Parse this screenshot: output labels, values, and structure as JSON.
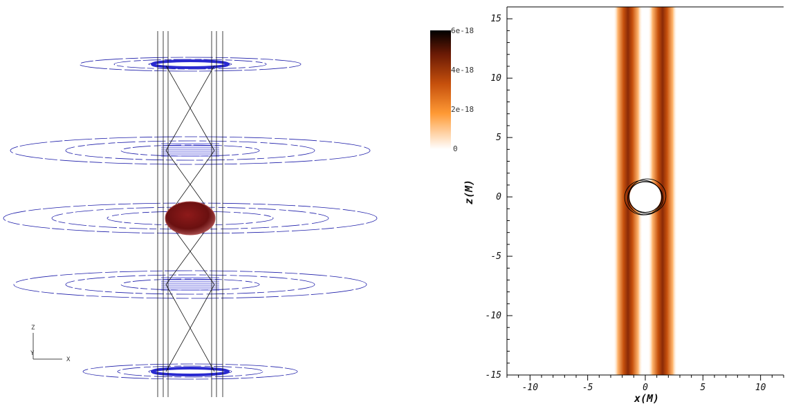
{
  "left_panel": {
    "triad": {
      "z_label": "Z",
      "y_label": "Y",
      "x_label": "X"
    },
    "colors": {
      "field_line": "#1a1aa8",
      "dark_line": "#111111",
      "sphere": "#7a1414",
      "ring": "#2a2ad0"
    }
  },
  "colorbar": {
    "labels": [
      "6e-18",
      "4e-18",
      "2e-18",
      "0"
    ],
    "range": [
      0,
      6e-18
    ],
    "colormap": [
      "#ffffff",
      "#ff9a35",
      "#c6500c",
      "#6b1a05",
      "#000000"
    ]
  },
  "chart_data": {
    "type": "heatmap",
    "xlabel": "x(M)",
    "ylabel": "z(M)",
    "xlim": [
      -12,
      12
    ],
    "ylim": [
      -15,
      16
    ],
    "x_ticks": [
      "-10",
      "-5",
      "0",
      "5",
      "10"
    ],
    "x_tick_values": [
      -10,
      -5,
      0,
      5,
      10
    ],
    "y_ticks": [
      "15",
      "10",
      "5",
      "0",
      "-5",
      "-10",
      "-15"
    ],
    "y_tick_values": [
      15,
      10,
      5,
      0,
      -5,
      -10,
      -15
    ],
    "vertical_bands": [
      {
        "x_center": -1.5,
        "half_width": 0.9,
        "peak": 6e-18
      },
      {
        "x_center": 1.5,
        "half_width": 0.9,
        "peak": 6e-18
      }
    ],
    "horizon_radius": 1.3,
    "horizon_center": [
      0,
      0
    ]
  }
}
